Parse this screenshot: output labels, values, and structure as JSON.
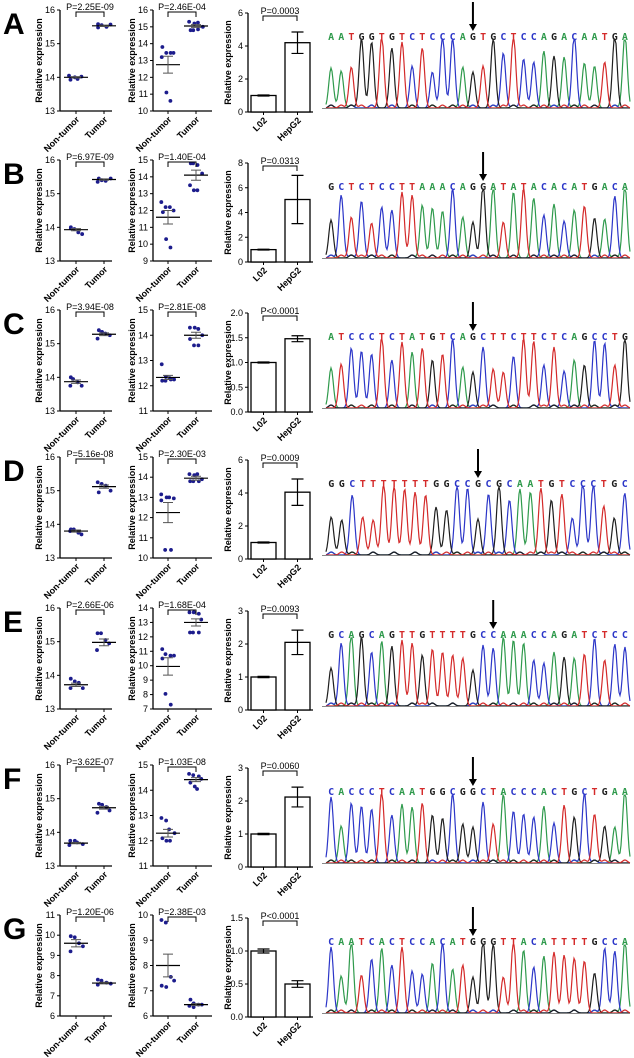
{
  "colors": {
    "point": "#1c1c8c",
    "A": "#2f9a4c",
    "C": "#2c36c8",
    "G": "#1e1e1e",
    "T": "#d42a2a"
  },
  "chart_data": [
    {
      "panel": "A",
      "scatter": [
        {
          "type": "scatter",
          "ylabel": "Relative expression",
          "ylim": [
            13,
            16
          ],
          "ticks": [
            13,
            14,
            15,
            16
          ],
          "p": "P=2.25E-09",
          "groups": [
            {
              "name": "Non-tumor",
              "mean": 14.0,
              "sem": 0.02,
              "points": [
                14.05,
                14.0,
                13.95,
                14.02,
                13.93
              ]
            },
            {
              "name": "Tumor",
              "mean": 15.53,
              "sem": 0.02,
              "points": [
                15.58,
                15.55,
                15.5,
                15.57,
                15.48
              ]
            }
          ]
        },
        {
          "type": "scatter",
          "ylabel": "Relative expression",
          "ylim": [
            10,
            16
          ],
          "ticks": [
            10,
            11,
            12,
            13,
            14,
            15,
            16
          ],
          "p": "P=2.46E-04",
          "groups": [
            {
              "name": "Non-tumor",
              "mean": 12.75,
              "sem": 0.5,
              "points": [
                13.8,
                13.45,
                13.45,
                13.45,
                13.2,
                11.1,
                10.6
              ]
            },
            {
              "name": "Tumor",
              "mean": 15.05,
              "sem": 0.08,
              "points": [
                15.3,
                15.2,
                15.25,
                15.0,
                14.8,
                14.8,
                14.85
              ]
            }
          ]
        }
      ],
      "bar": {
        "type": "bar",
        "ylabel": "Relative expression",
        "ylim": [
          0,
          6
        ],
        "ticks": [
          "0",
          "2",
          "4",
          "6"
        ],
        "p": "P=0.0003",
        "categories": [
          "L02",
          "HepG2"
        ],
        "values": [
          1.0,
          4.2
        ],
        "errors": [
          0.03,
          0.65
        ]
      },
      "sequence": "AATGGTGTCTCCCAGTGCTCCAGACAATGA",
      "arrow_index": 14
    },
    {
      "panel": "B",
      "scatter": [
        {
          "type": "scatter",
          "ylabel": "Relative expression",
          "ylim": [
            13,
            16
          ],
          "ticks": [
            13,
            14,
            15,
            16
          ],
          "p": "P=6.97E-09",
          "groups": [
            {
              "name": "Non-tumor",
              "mean": 13.93,
              "sem": 0.03,
              "points": [
                14.0,
                13.95,
                13.85,
                13.8,
                13.97
              ]
            },
            {
              "name": "Tumor",
              "mean": 15.42,
              "sem": 0.02,
              "points": [
                15.45,
                15.4,
                15.38,
                15.45,
                15.35
              ]
            }
          ]
        },
        {
          "type": "scatter",
          "ylabel": "Relative expression",
          "ylim": [
            9,
            15
          ],
          "ticks": [
            9,
            10,
            11,
            12,
            13,
            14,
            15
          ],
          "p": "P=1.40E-04",
          "groups": [
            {
              "name": "Non-tumor",
              "mean": 11.6,
              "sem": 0.4,
              "points": [
                12.5,
                12.2,
                12.2,
                12.0,
                11.9,
                10.3,
                9.8
              ]
            },
            {
              "name": "Tumor",
              "mean": 14.1,
              "sem": 0.3,
              "points": [
                14.8,
                14.8,
                14.7,
                14.2,
                13.5,
                13.2,
                13.2
              ]
            }
          ]
        }
      ],
      "bar": {
        "type": "bar",
        "ylabel": "Relative expression",
        "ylim": [
          0,
          8
        ],
        "ticks": [
          "0",
          "2",
          "4",
          "6",
          "8"
        ],
        "p": "P=0.0313",
        "categories": [
          "L02",
          "HepG2"
        ],
        "values": [
          1.0,
          5.05
        ],
        "errors": [
          0.03,
          1.95
        ]
      },
      "sequence": "GCTCTCCTTAAACAGGATATACACATGACA",
      "arrow_index": 15
    },
    {
      "panel": "C",
      "scatter": [
        {
          "type": "scatter",
          "ylabel": "Relative expression",
          "ylim": [
            13,
            16
          ],
          "ticks": [
            13,
            14,
            15,
            16
          ],
          "p": "P=3.94E-08",
          "groups": [
            {
              "name": "Non-tumor",
              "mean": 13.87,
              "sem": 0.05,
              "points": [
                14.0,
                13.95,
                13.85,
                13.75,
                13.75
              ]
            },
            {
              "name": "Tumor",
              "mean": 15.28,
              "sem": 0.04,
              "points": [
                15.4,
                15.35,
                15.3,
                15.25,
                15.15
              ]
            }
          ]
        },
        {
          "type": "scatter",
          "ylabel": "Relative expression",
          "ylim": [
            11,
            15
          ],
          "ticks": [
            11,
            12,
            13,
            14,
            15
          ],
          "p": "P=2.81E-08",
          "groups": [
            {
              "name": "Non-tumor",
              "mean": 12.33,
              "sem": 0.08,
              "points": [
                12.85,
                12.35,
                12.3,
                12.25,
                12.2,
                12.2,
                12.25
              ]
            },
            {
              "name": "Tumor",
              "mean": 14.0,
              "sem": 0.12,
              "points": [
                14.3,
                14.3,
                14.25,
                14.0,
                13.85,
                13.6,
                13.6
              ]
            }
          ]
        }
      ],
      "bar": {
        "type": "bar",
        "ylabel": "Relative expression",
        "ylim": [
          0,
          2
        ],
        "ticks": [
          "0.0",
          "0.5",
          "1.0",
          "1.5",
          "2.0"
        ],
        "p": "P<0.0001",
        "categories": [
          "L02",
          "HepG2"
        ],
        "values": [
          1.0,
          1.48
        ],
        "errors": [
          0.01,
          0.06
        ]
      },
      "sequence": "ATCCCTCTATGTCAGCTTCTTCTCAGCCTG",
      "arrow_index": 14
    },
    {
      "panel": "D",
      "scatter": [
        {
          "type": "scatter",
          "ylabel": "Relative expression",
          "ylim": [
            13,
            16
          ],
          "ticks": [
            13,
            14,
            15,
            16
          ],
          "p": "P=5.16e-08",
          "groups": [
            {
              "name": "Non-tumor",
              "mean": 13.8,
              "sem": 0.03,
              "points": [
                13.85,
                13.85,
                13.75,
                13.7,
                13.8
              ]
            },
            {
              "name": "Tumor",
              "mean": 15.12,
              "sem": 0.05,
              "points": [
                15.25,
                15.2,
                15.15,
                15.0,
                14.95
              ]
            }
          ]
        },
        {
          "type": "scatter",
          "ylabel": "Relative expression",
          "ylim": [
            10,
            15
          ],
          "ticks": [
            10,
            11,
            12,
            13,
            14,
            15
          ],
          "p": "P=2.30E-03",
          "groups": [
            {
              "name": "Non-tumor",
              "mean": 12.25,
              "sem": 0.5,
              "points": [
                13.15,
                13.0,
                13.0,
                12.95,
                12.85,
                10.4,
                10.4
              ]
            },
            {
              "name": "Tumor",
              "mean": 13.95,
              "sem": 0.1,
              "points": [
                14.15,
                14.1,
                14.15,
                13.9,
                13.8,
                13.8,
                13.8
              ]
            }
          ]
        }
      ],
      "bar": {
        "type": "bar",
        "ylabel": "Relative expression",
        "ylim": [
          0,
          6
        ],
        "ticks": [
          "0",
          "2",
          "4",
          "6"
        ],
        "p": "P=0.0009",
        "categories": [
          "L02",
          "HepG2"
        ],
        "values": [
          1.0,
          4.05
        ],
        "errors": [
          0.03,
          0.8
        ]
      },
      "sequence": "GGCTTTTTTTGGCCGCGCAATGTCCCTGC",
      "arrow_index": 14
    },
    {
      "panel": "E",
      "scatter": [
        {
          "type": "scatter",
          "ylabel": "Relative expression",
          "ylim": [
            13,
            16
          ],
          "ticks": [
            13,
            14,
            15,
            16
          ],
          "p": "P=2.66E-06",
          "groups": [
            {
              "name": "Non-tumor",
              "mean": 13.72,
              "sem": 0.05,
              "points": [
                13.9,
                13.82,
                13.78,
                13.62,
                13.62
              ]
            },
            {
              "name": "Tumor",
              "mean": 14.98,
              "sem": 0.1,
              "points": [
                15.25,
                15.25,
                15.05,
                14.95,
                14.75
              ]
            }
          ]
        },
        {
          "type": "scatter",
          "ylabel": "Relative expression",
          "ylim": [
            7,
            14
          ],
          "ticks": [
            7,
            8,
            9,
            10,
            11,
            12,
            13,
            14
          ],
          "p": "P=1.68E-04",
          "groups": [
            {
              "name": "Non-tumor",
              "mean": 9.95,
              "sem": 0.6,
              "points": [
                11.15,
                10.8,
                10.7,
                10.7,
                10.5,
                8.05,
                7.3
              ]
            },
            {
              "name": "Tumor",
              "mean": 13.0,
              "sem": 0.25,
              "points": [
                13.7,
                13.7,
                13.6,
                13.2,
                12.3,
                12.3,
                12.3
              ]
            }
          ]
        }
      ],
      "bar": {
        "type": "bar",
        "ylabel": "Relative expression",
        "ylim": [
          0,
          3
        ],
        "ticks": [
          "0",
          "1",
          "2",
          "3"
        ],
        "p": "P=0.0093",
        "categories": [
          "L02",
          "HepG2"
        ],
        "values": [
          1.0,
          2.05
        ],
        "errors": [
          0.02,
          0.37
        ]
      },
      "sequence": "GCAGCAGTTGTTTTGCCAAACCAGATCTCC",
      "arrow_index": 16
    },
    {
      "panel": "F",
      "scatter": [
        {
          "type": "scatter",
          "ylabel": "Relative expression",
          "ylim": [
            13,
            16
          ],
          "ticks": [
            13,
            14,
            15,
            16
          ],
          "p": "P=3.62E-07",
          "groups": [
            {
              "name": "Non-tumor",
              "mean": 13.68,
              "sem": 0.02,
              "points": [
                13.75,
                13.75,
                13.7,
                13.65,
                13.62
              ]
            },
            {
              "name": "Tumor",
              "mean": 14.73,
              "sem": 0.04,
              "points": [
                14.85,
                14.82,
                14.75,
                14.65,
                14.58
              ]
            }
          ]
        },
        {
          "type": "scatter",
          "ylabel": "Relative expression",
          "ylim": [
            11,
            15
          ],
          "ticks": [
            11,
            12,
            13,
            14,
            15
          ],
          "p": "P=1.03E-08",
          "groups": [
            {
              "name": "Non-tumor",
              "mean": 12.3,
              "sem": 0.15,
              "points": [
                12.9,
                12.8,
                12.45,
                12.3,
                12.1,
                12.0,
                12.0
              ]
            },
            {
              "name": "Tumor",
              "mean": 14.42,
              "sem": 0.08,
              "points": [
                14.65,
                14.6,
                14.55,
                14.45,
                14.3,
                14.15,
                14.05
              ]
            }
          ]
        }
      ],
      "bar": {
        "type": "bar",
        "ylabel": "Relative expression",
        "ylim": [
          0,
          3
        ],
        "ticks": [
          "0",
          "1",
          "2",
          "3"
        ],
        "p": "P=0.0060",
        "categories": [
          "L02",
          "HepG2"
        ],
        "values": [
          1.0,
          2.12
        ],
        "errors": [
          0.02,
          0.3
        ]
      },
      "sequence": "CACCCTCAATGGCGGCTACCCACTGCTGAA",
      "arrow_index": 14
    },
    {
      "panel": "G",
      "scatter": [
        {
          "type": "scatter",
          "ylabel": "Relative expression",
          "ylim": [
            6,
            11
          ],
          "ticks": [
            6,
            7,
            8,
            9,
            10,
            11
          ],
          "p": "P=1.20E-06",
          "groups": [
            {
              "name": "Non-tumor",
              "mean": 9.6,
              "sem": 0.18,
              "points": [
                9.95,
                9.9,
                9.6,
                9.45,
                9.2
              ]
            },
            {
              "name": "Tumor",
              "mean": 7.63,
              "sem": 0.04,
              "points": [
                7.8,
                7.75,
                7.65,
                7.6,
                7.55
              ]
            }
          ]
        },
        {
          "type": "scatter",
          "ylabel": "Relative expression",
          "ylim": [
            6,
            10
          ],
          "ticks": [
            6,
            7,
            8,
            9,
            10
          ],
          "p": "P=2.38E-03",
          "groups": [
            {
              "name": "Non-tumor",
              "mean": 8.0,
              "sem": 0.45,
              "points": [
                9.8,
                9.7,
                7.55,
                7.4,
                7.2,
                7.15
              ]
            },
            {
              "name": "Tumor",
              "mean": 6.45,
              "sem": 0.04,
              "points": [
                6.65,
                6.5,
                6.45,
                6.45,
                6.4,
                6.35
              ]
            }
          ]
        }
      ],
      "bar": {
        "type": "bar",
        "ylabel": "Relative expression",
        "ylim": [
          0,
          1.5
        ],
        "ticks": [
          "0.0",
          "0.5",
          "1.0",
          "1.5"
        ],
        "p": "P<0.0001",
        "categories": [
          "L02",
          "HepG2"
        ],
        "values": [
          1.0,
          0.5
        ],
        "errors": [
          0.03,
          0.05
        ]
      },
      "sequence": "CAATCACTCCACATGGGTTACATTTTGCCA",
      "arrow_index": 14
    }
  ]
}
